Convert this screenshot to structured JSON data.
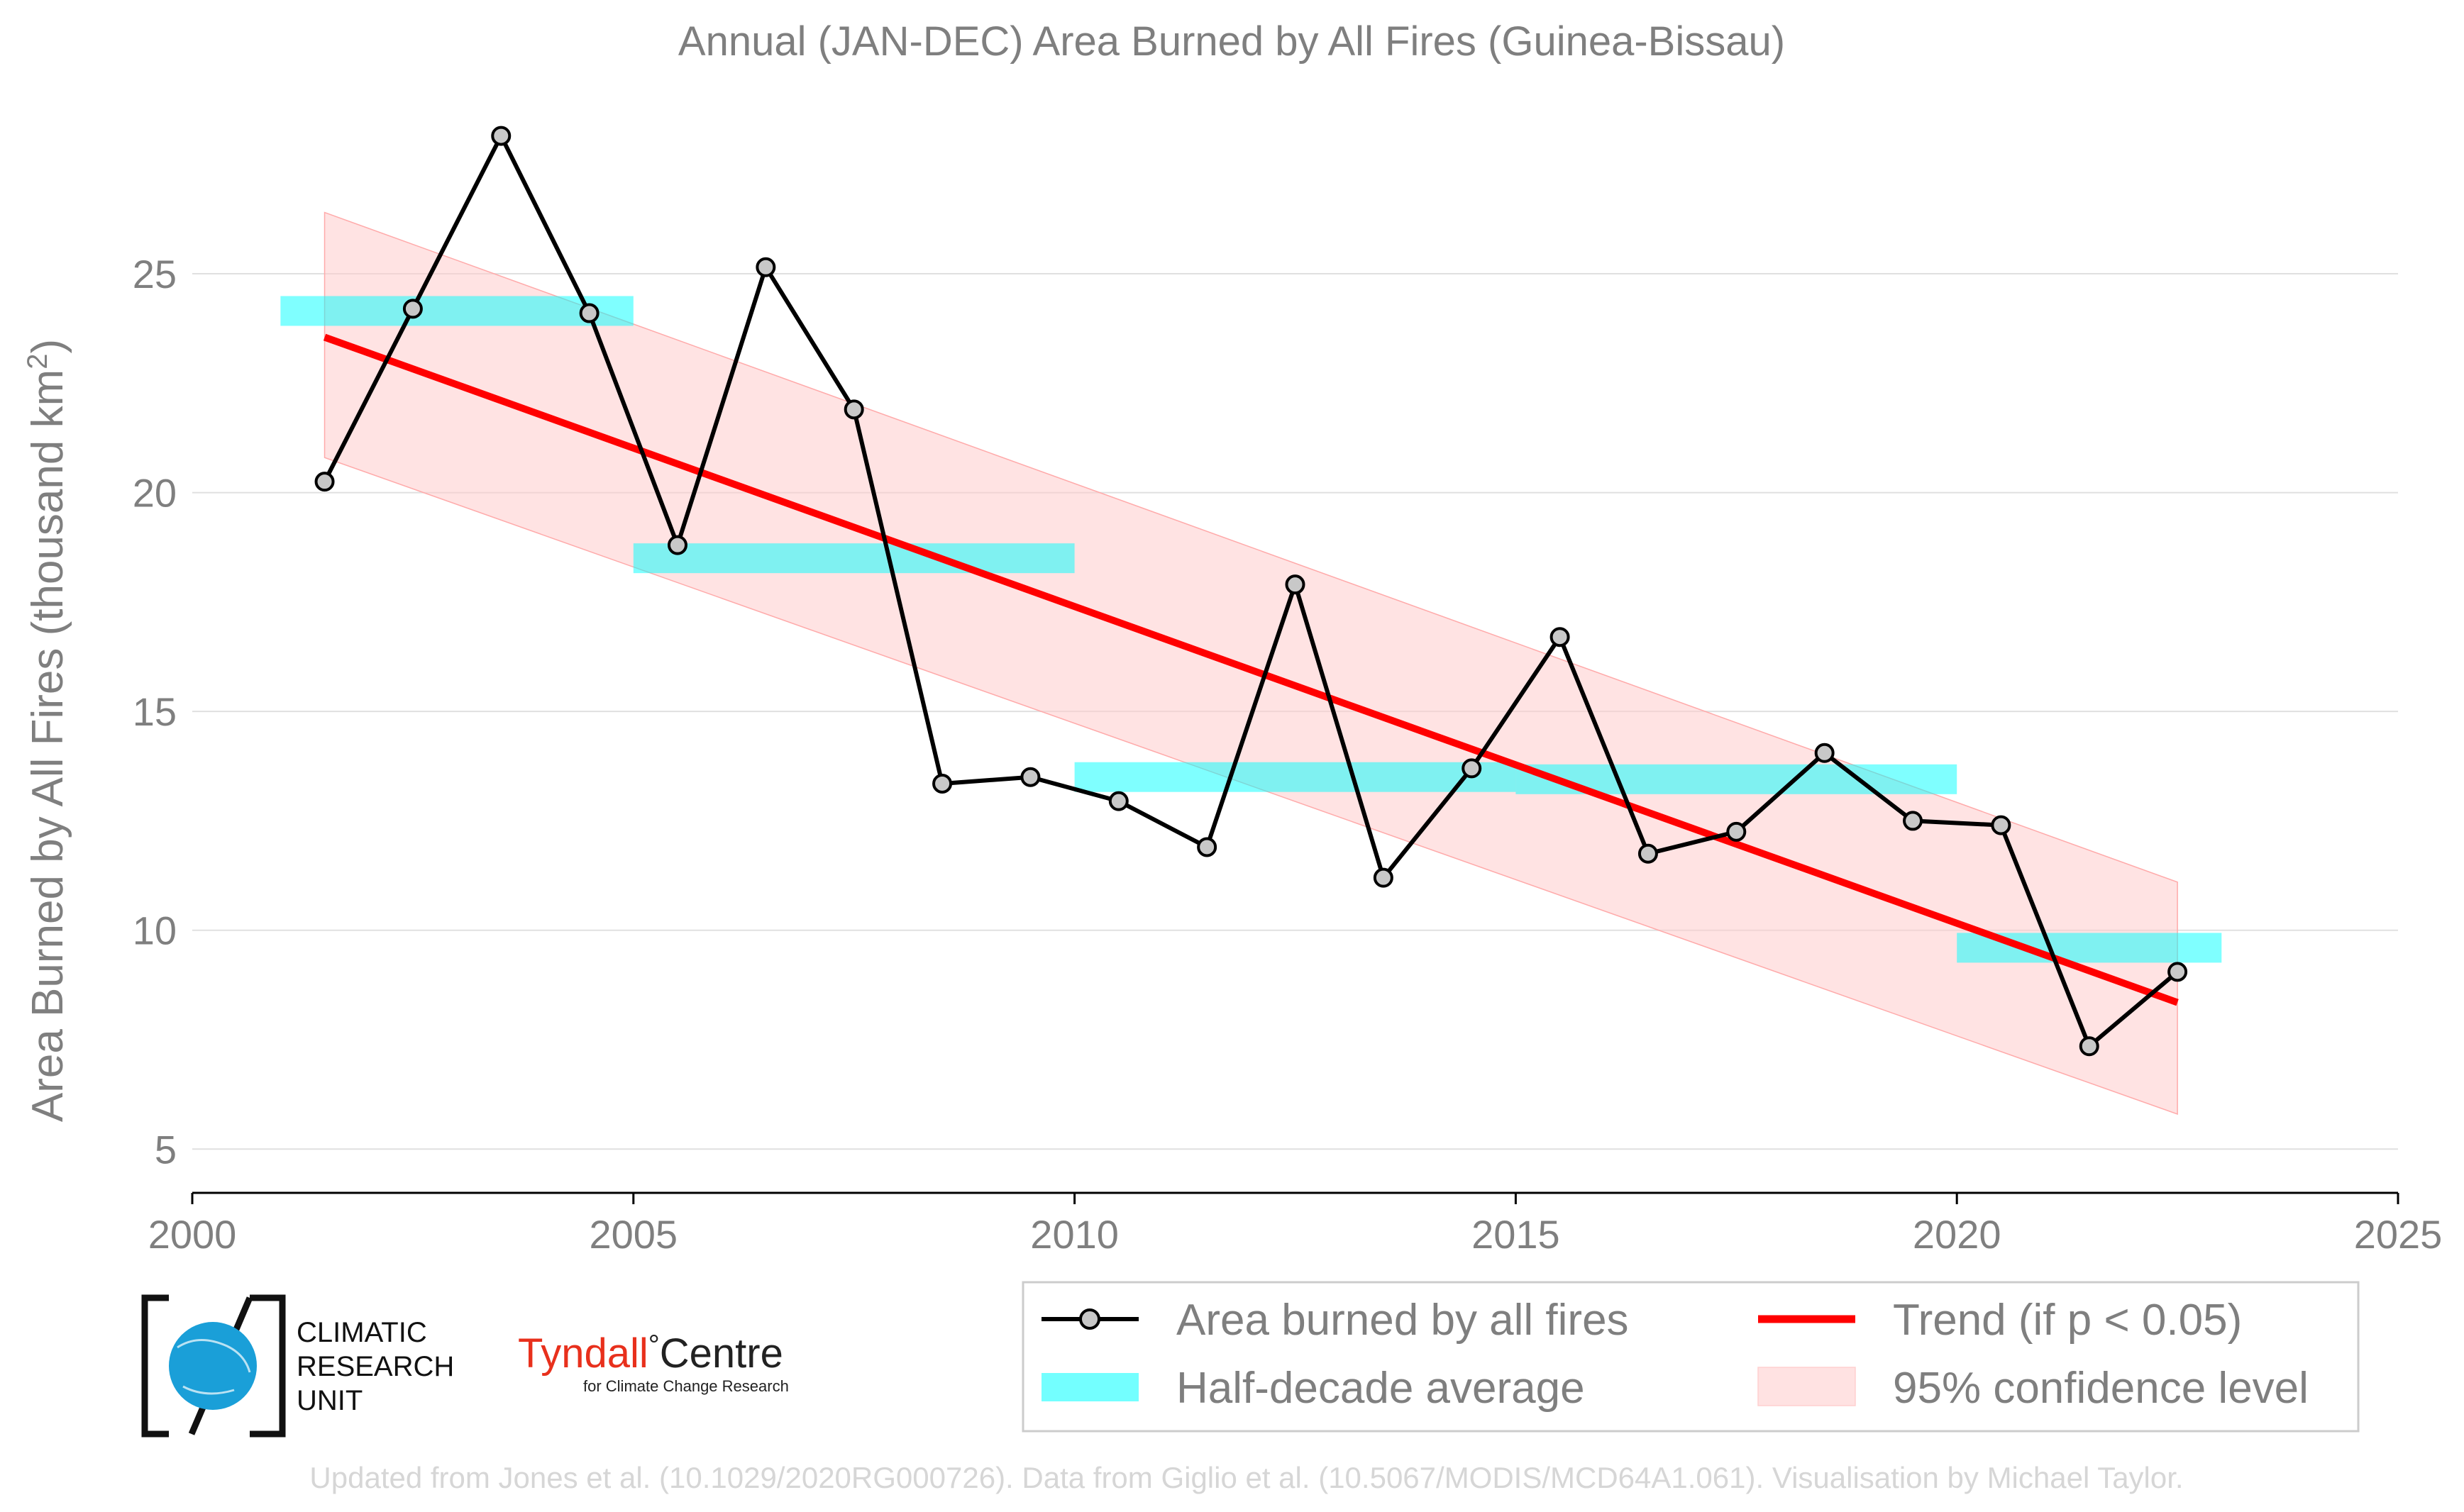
{
  "chart_data": {
    "type": "line",
    "title": "Annual (JAN-DEC) Area Burned by All Fires (Guinea-Bissau)",
    "ylabel_main": "Area Burned by All Fires (thousand km",
    "ylabel_sup": "2",
    "ylabel_close": ")",
    "xlim": [
      2000,
      2025
    ],
    "ylim": [
      4,
      28.5
    ],
    "x_ticks": [
      2000,
      2005,
      2010,
      2015,
      2020,
      2025
    ],
    "y_ticks": [
      5,
      10,
      15,
      20,
      25
    ],
    "grid": "horizontal",
    "series": [
      {
        "name": "Area burned by all fires",
        "color": "#000000",
        "x": [
          2001.5,
          2002.5,
          2003.5,
          2004.5,
          2005.5,
          2006.5,
          2007.5,
          2008.5,
          2009.5,
          2010.5,
          2011.5,
          2012.5,
          2013.5,
          2014.5,
          2015.5,
          2016.5,
          2017.5,
          2018.5,
          2019.5,
          2020.5,
          2021.5,
          2022.5
        ],
        "y": [
          20.25,
          24.2,
          28.15,
          24.1,
          18.8,
          25.15,
          21.9,
          13.35,
          13.5,
          12.95,
          11.9,
          17.9,
          11.2,
          13.7,
          16.7,
          11.75,
          12.25,
          14.05,
          12.5,
          12.4,
          7.35,
          9.05
        ]
      },
      {
        "name": "Half-decade average",
        "color": "#00ffff",
        "segments": [
          {
            "x0": 2001,
            "x1": 2005,
            "y": 24.15
          },
          {
            "x0": 2005,
            "x1": 2010,
            "y": 18.5
          },
          {
            "x0": 2010,
            "x1": 2015,
            "y": 13.5
          },
          {
            "x0": 2015,
            "x1": 2020,
            "y": 13.45
          },
          {
            "x0": 2020,
            "x1": 2023,
            "y": 9.6
          }
        ]
      },
      {
        "name": "Trend (if p < 0.05)",
        "color": "#ff0000",
        "x": [
          2001.5,
          2022.5
        ],
        "y": [
          23.55,
          8.35
        ]
      },
      {
        "name": "95% confidence level",
        "color": "#ffcccc",
        "x": [
          2001.5,
          2022.5
        ],
        "upper": [
          26.4,
          11.1
        ],
        "lower": [
          20.8,
          5.8
        ]
      }
    ],
    "legend": {
      "position": "bottom-right",
      "items": [
        "Area burned by all fires",
        "Trend (if p < 0.05)",
        "Half-decade average",
        "95% confidence level"
      ]
    }
  },
  "logos": {
    "cru_line1": "CLIMATIC",
    "cru_line2": "RESEARCH",
    "cru_line3": "UNIT",
    "tyndall_main": "Tyndall",
    "tyndall_degree": "°",
    "tyndall_centre": "Centre",
    "tyndall_sub": "for Climate Change Research"
  },
  "credit": "Updated from Jones et al. (10.1029/2020RG000726). Data from Giglio et al. (10.5067/MODIS/MCD64A1.061). Visualisation by Michael Taylor.",
  "colors": {
    "text": "#7f7f7f",
    "grid": "#e0e0e0",
    "line": "#000000",
    "marker_fill": "#c8c8c8",
    "half_decade": "#00ffff",
    "trend": "#ff0000",
    "confidence": "#ffcccc",
    "tyndall_red": "#e8301c",
    "cru_blue": "#1a9fd8"
  }
}
